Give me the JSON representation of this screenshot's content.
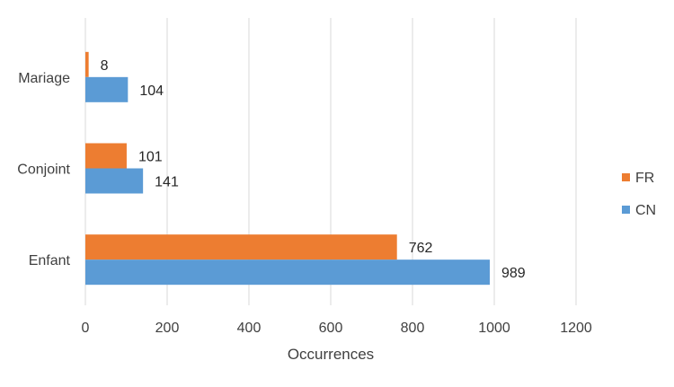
{
  "chart_data": {
    "type": "bar",
    "orientation": "horizontal",
    "categories": [
      "Mariage",
      "Conjoint",
      "Enfant"
    ],
    "series": [
      {
        "name": "FR",
        "color": "#ED7D31",
        "values": [
          8,
          101,
          762
        ]
      },
      {
        "name": "CN",
        "color": "#5B9BD5",
        "values": [
          104,
          141,
          989
        ]
      }
    ],
    "xlabel": "Occurrences",
    "ylabel": "",
    "title": "",
    "xlim": [
      0,
      1200
    ],
    "xticks": [
      "0",
      "200",
      "400",
      "600",
      "800",
      "1000",
      "1200"
    ],
    "grid": "vertical",
    "legend_position": "right"
  }
}
